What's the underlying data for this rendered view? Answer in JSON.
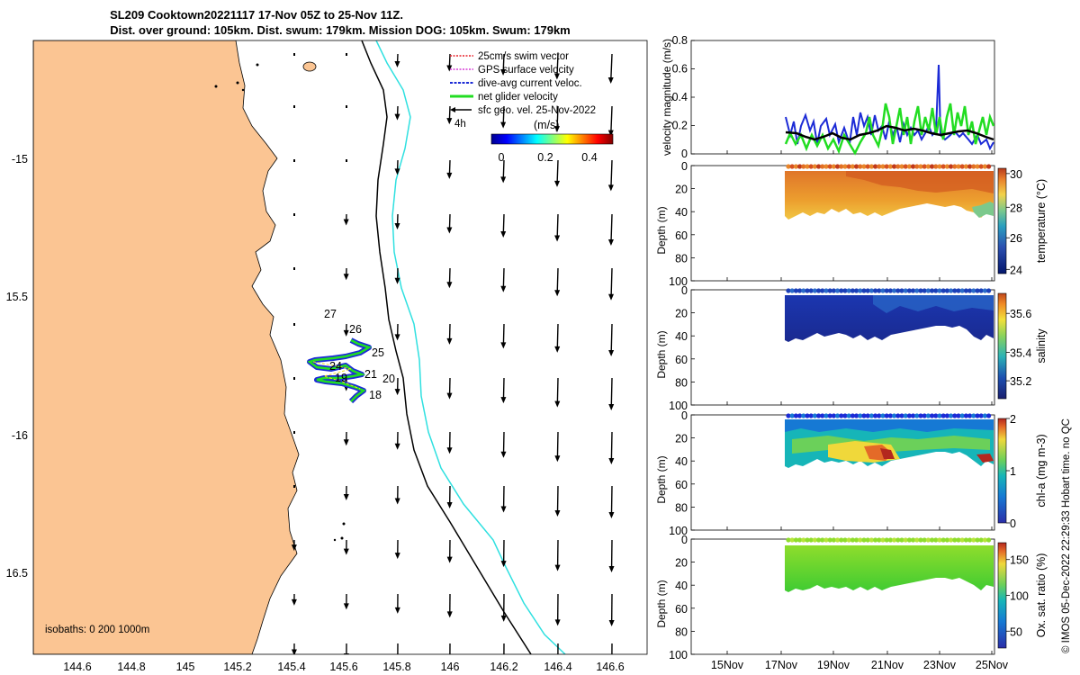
{
  "title": {
    "line1": "SL209 Cooktown20221117 17-Nov 05Z to 25-Nov 11Z.",
    "line2": "Dist. over ground: 105km. Dist. swum: 179km. Mission DOG: 105km. Swum: 179km"
  },
  "map": {
    "lon_ticks": [
      "144.6",
      "144.8",
      "145",
      "145.2",
      "145.4",
      "145.6",
      "145.8",
      "146",
      "146.2",
      "146.4",
      "146.6"
    ],
    "lat_ticks": [
      "-15",
      "15.5",
      "-16",
      "16.5"
    ],
    "legend": [
      {
        "label": "25cm/s swim vector",
        "color": "#e8202a"
      },
      {
        "label": "GPS surface velocity",
        "color": "#d63bd6"
      },
      {
        "label": "dive-avg current veloc.",
        "color": "#1c2bd6"
      },
      {
        "label": "net glider velocity",
        "color": "#22dd22"
      },
      {
        "label": "sfc geo. vel. 25-Nov-2022",
        "color": "#000000"
      }
    ],
    "legend_note": "4h",
    "colorbar_label": "(m/s)",
    "colorbar_ticks": [
      "0",
      "0.2",
      "0.4"
    ],
    "isobaths": "isobaths: 0   200  1000m",
    "day_labels": [
      "27",
      "26",
      "25",
      "24",
      "21",
      "20",
      "19",
      "18"
    ],
    "colors": {
      "land": "#fbc593",
      "bathy_200": "#000000",
      "bathy_1000": "#2fe0e0"
    }
  },
  "chart_data": [
    {
      "type": "line",
      "title": "",
      "ylabel": "velocity magnitude (m/s)",
      "ylim": [
        0,
        0.8
      ],
      "yticks": [
        "0",
        "0.2",
        "0.4",
        "0.6",
        "0.8"
      ],
      "series": [
        {
          "name": "dive-avg current veloc.",
          "color": "#1c2bd6"
        },
        {
          "name": "net glider velocity",
          "color": "#22dd22"
        },
        {
          "name": "sfc geo. vel.",
          "color": "#000000"
        }
      ]
    },
    {
      "type": "heatmap",
      "ylabel": "Depth (m)",
      "yticks": [
        "0",
        "20",
        "40",
        "60",
        "80",
        "100"
      ],
      "colorbar_label": "temperature (°C)",
      "colorbar_ticks": [
        "30",
        "28",
        "26",
        "24"
      ]
    },
    {
      "type": "heatmap",
      "ylabel": "Depth (m)",
      "yticks": [
        "0",
        "20",
        "40",
        "60",
        "80",
        "100"
      ],
      "colorbar_label": "salinity",
      "colorbar_ticks": [
        "35.6",
        "35.4",
        "35.2"
      ]
    },
    {
      "type": "heatmap",
      "ylabel": "Depth (m)",
      "yticks": [
        "0",
        "20",
        "40",
        "60",
        "80",
        "100"
      ],
      "colorbar_label": "chl-a (mg m-3)",
      "colorbar_ticks": [
        "2",
        "1",
        "0"
      ]
    },
    {
      "type": "heatmap",
      "ylabel": "Depth (m)",
      "yticks": [
        "0",
        "20",
        "40",
        "60",
        "80",
        "100"
      ],
      "colorbar_label": "Ox. sat. ratio (%)",
      "colorbar_ticks": [
        "150",
        "100",
        "50"
      ],
      "xticks": [
        "15Nov",
        "17Nov",
        "19Nov",
        "21Nov",
        "23Nov",
        "25Nov"
      ]
    }
  ],
  "credit": "© IMOS 05-Dec-2022 22:29:33 Hobart time. no QC"
}
